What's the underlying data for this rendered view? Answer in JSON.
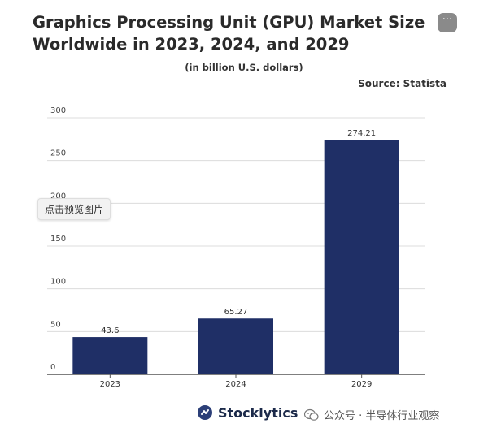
{
  "chart_data": {
    "type": "bar",
    "title": "Graphics Processing Unit (GPU) Market Size Worldwide in 2023, 2024, and 2029",
    "subtitle": "(in billion U.S. dollars)",
    "source": "Source: Statista",
    "categories": [
      "2023",
      "2024",
      "2029"
    ],
    "values": [
      43.6,
      65.27,
      274.21
    ],
    "value_labels": [
      "43.6",
      "65.27",
      "274.21"
    ],
    "yticks": [
      0,
      50,
      100,
      150,
      200,
      250,
      300
    ],
    "ylim": [
      0,
      300
    ],
    "xlabel": "",
    "ylabel": "",
    "grid": true,
    "bar_color": "#1f2f66",
    "grid_color": "#dcdcdc"
  },
  "overlay": {
    "preview_label": "点击预览图片",
    "more_label": "···"
  },
  "footer": {
    "brand": "Stocklytics",
    "brand_color": "#2c3f78",
    "watermark": "公众号 · 半导体行业观察"
  }
}
